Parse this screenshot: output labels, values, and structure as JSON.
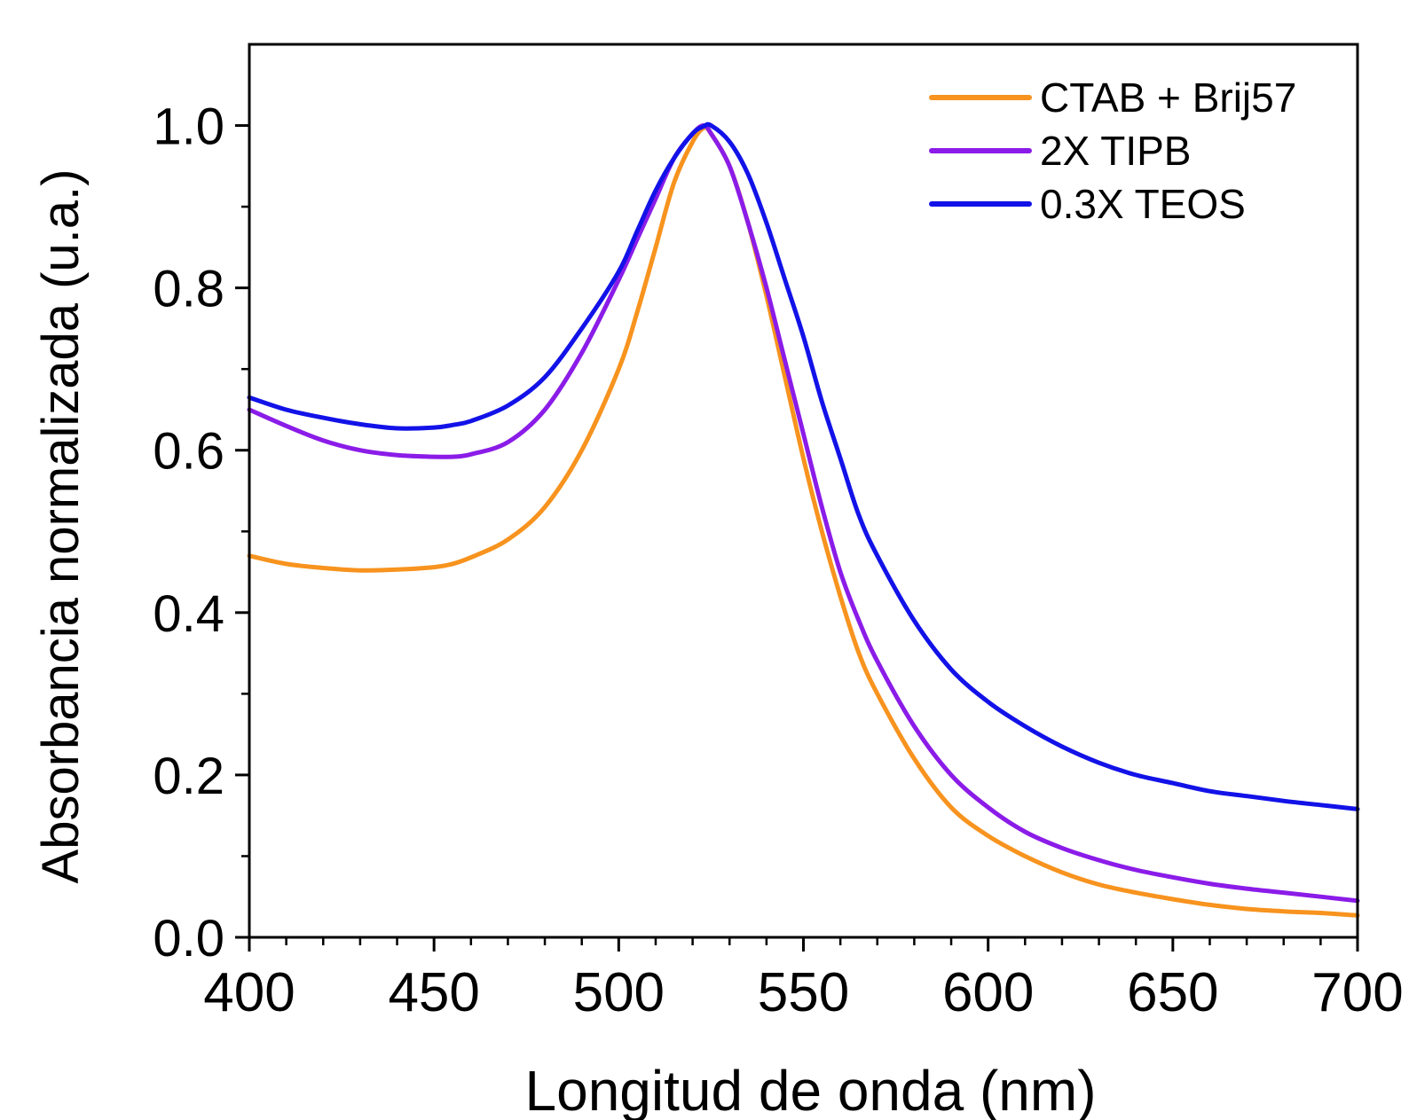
{
  "chart_data": {
    "type": "line",
    "title": "",
    "xlabel": "Longitud de onda (nm)",
    "ylabel": "Absorbancia normalizada (u.a.)",
    "xlim": [
      400,
      700
    ],
    "ylim": [
      0.0,
      1.1
    ],
    "x_ticks": [
      400,
      450,
      500,
      550,
      600,
      650,
      700
    ],
    "x_tick_labels": [
      "400",
      "450",
      "500",
      "550",
      "600",
      "650",
      "700"
    ],
    "y_ticks": [
      0.0,
      0.2,
      0.4,
      0.6,
      0.8,
      1.0
    ],
    "y_tick_labels": [
      "0.0",
      "0.2",
      "0.4",
      "0.6",
      "0.8",
      "1.0"
    ],
    "grid": false,
    "legend_position": "top-right",
    "series": [
      {
        "name": "CTAB + Brij57",
        "color": "#f7931e",
        "x": [
          400,
          410,
          420,
          430,
          440,
          450,
          455,
          460,
          470,
          480,
          490,
          500,
          505,
          510,
          515,
          520,
          523,
          525,
          530,
          535,
          540,
          545,
          550,
          555,
          560,
          565,
          570,
          580,
          590,
          600,
          610,
          620,
          630,
          640,
          650,
          660,
          670,
          680,
          690,
          700
        ],
        "values": [
          0.47,
          0.46,
          0.455,
          0.452,
          0.453,
          0.456,
          0.46,
          0.468,
          0.49,
          0.53,
          0.6,
          0.7,
          0.77,
          0.85,
          0.93,
          0.98,
          0.997,
          0.99,
          0.95,
          0.88,
          0.79,
          0.69,
          0.59,
          0.5,
          0.42,
          0.35,
          0.3,
          0.22,
          0.16,
          0.125,
          0.1,
          0.08,
          0.065,
          0.055,
          0.047,
          0.04,
          0.035,
          0.032,
          0.03,
          0.027
        ]
      },
      {
        "name": "2X TIPB",
        "color": "#8b1ce8",
        "x": [
          400,
          410,
          420,
          430,
          440,
          450,
          455,
          460,
          470,
          480,
          490,
          500,
          505,
          510,
          515,
          520,
          523,
          525,
          530,
          535,
          540,
          545,
          550,
          555,
          560,
          565,
          570,
          580,
          590,
          600,
          610,
          620,
          630,
          640,
          650,
          660,
          670,
          680,
          690,
          700
        ],
        "values": [
          0.65,
          0.63,
          0.612,
          0.6,
          0.594,
          0.592,
          0.592,
          0.595,
          0.61,
          0.65,
          0.72,
          0.81,
          0.86,
          0.91,
          0.96,
          0.99,
          1.0,
          0.99,
          0.95,
          0.88,
          0.8,
          0.71,
          0.62,
          0.53,
          0.45,
          0.39,
          0.34,
          0.26,
          0.2,
          0.16,
          0.13,
          0.11,
          0.095,
          0.083,
          0.074,
          0.066,
          0.06,
          0.055,
          0.05,
          0.045
        ]
      },
      {
        "name": "0.3X TEOS",
        "color": "#1212e8",
        "x": [
          400,
          410,
          420,
          430,
          440,
          450,
          455,
          460,
          470,
          480,
          490,
          500,
          505,
          510,
          515,
          520,
          523,
          525,
          530,
          535,
          540,
          545,
          550,
          555,
          560,
          565,
          570,
          580,
          590,
          600,
          610,
          620,
          630,
          640,
          650,
          660,
          670,
          680,
          690,
          700
        ],
        "values": [
          0.665,
          0.65,
          0.64,
          0.632,
          0.627,
          0.628,
          0.631,
          0.636,
          0.655,
          0.69,
          0.75,
          0.82,
          0.87,
          0.92,
          0.96,
          0.99,
          0.999,
          1.0,
          0.98,
          0.94,
          0.88,
          0.81,
          0.74,
          0.66,
          0.59,
          0.52,
          0.47,
          0.39,
          0.33,
          0.29,
          0.26,
          0.235,
          0.215,
          0.2,
          0.19,
          0.18,
          0.174,
          0.168,
          0.163,
          0.158
        ]
      }
    ]
  }
}
